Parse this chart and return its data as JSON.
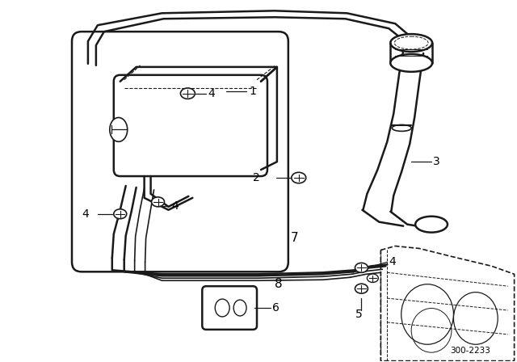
{
  "bg_color": "#ffffff",
  "line_color": "#1a1a1a",
  "label_color": "#000000",
  "diagram_id": "300-2233"
}
